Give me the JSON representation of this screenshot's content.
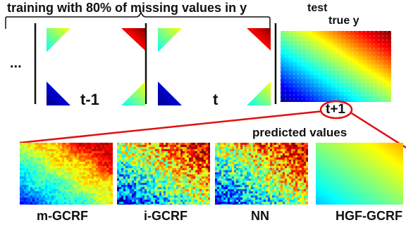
{
  "training": {
    "heading": "training with 80% of missing values in y",
    "ellipsis": "...",
    "frames": [
      {
        "label": "t-1"
      },
      {
        "label": "t"
      }
    ]
  },
  "test": {
    "heading": "test",
    "true_label": "true y",
    "time_label": "t+1"
  },
  "predicted": {
    "heading": "predicted values",
    "methods": [
      {
        "label": "m-GCRF",
        "style": "smooth-noisy"
      },
      {
        "label": "i-GCRF",
        "style": "very-noisy"
      },
      {
        "label": "NN",
        "style": "very-noisy"
      },
      {
        "label": "HGF-GCRF",
        "style": "smooth"
      }
    ]
  },
  "colors": {
    "callout_line": "#e01010",
    "colormap": [
      "#00008f",
      "#0000ff",
      "#00ffff",
      "#ffff00",
      "#ff0000",
      "#800000"
    ]
  }
}
